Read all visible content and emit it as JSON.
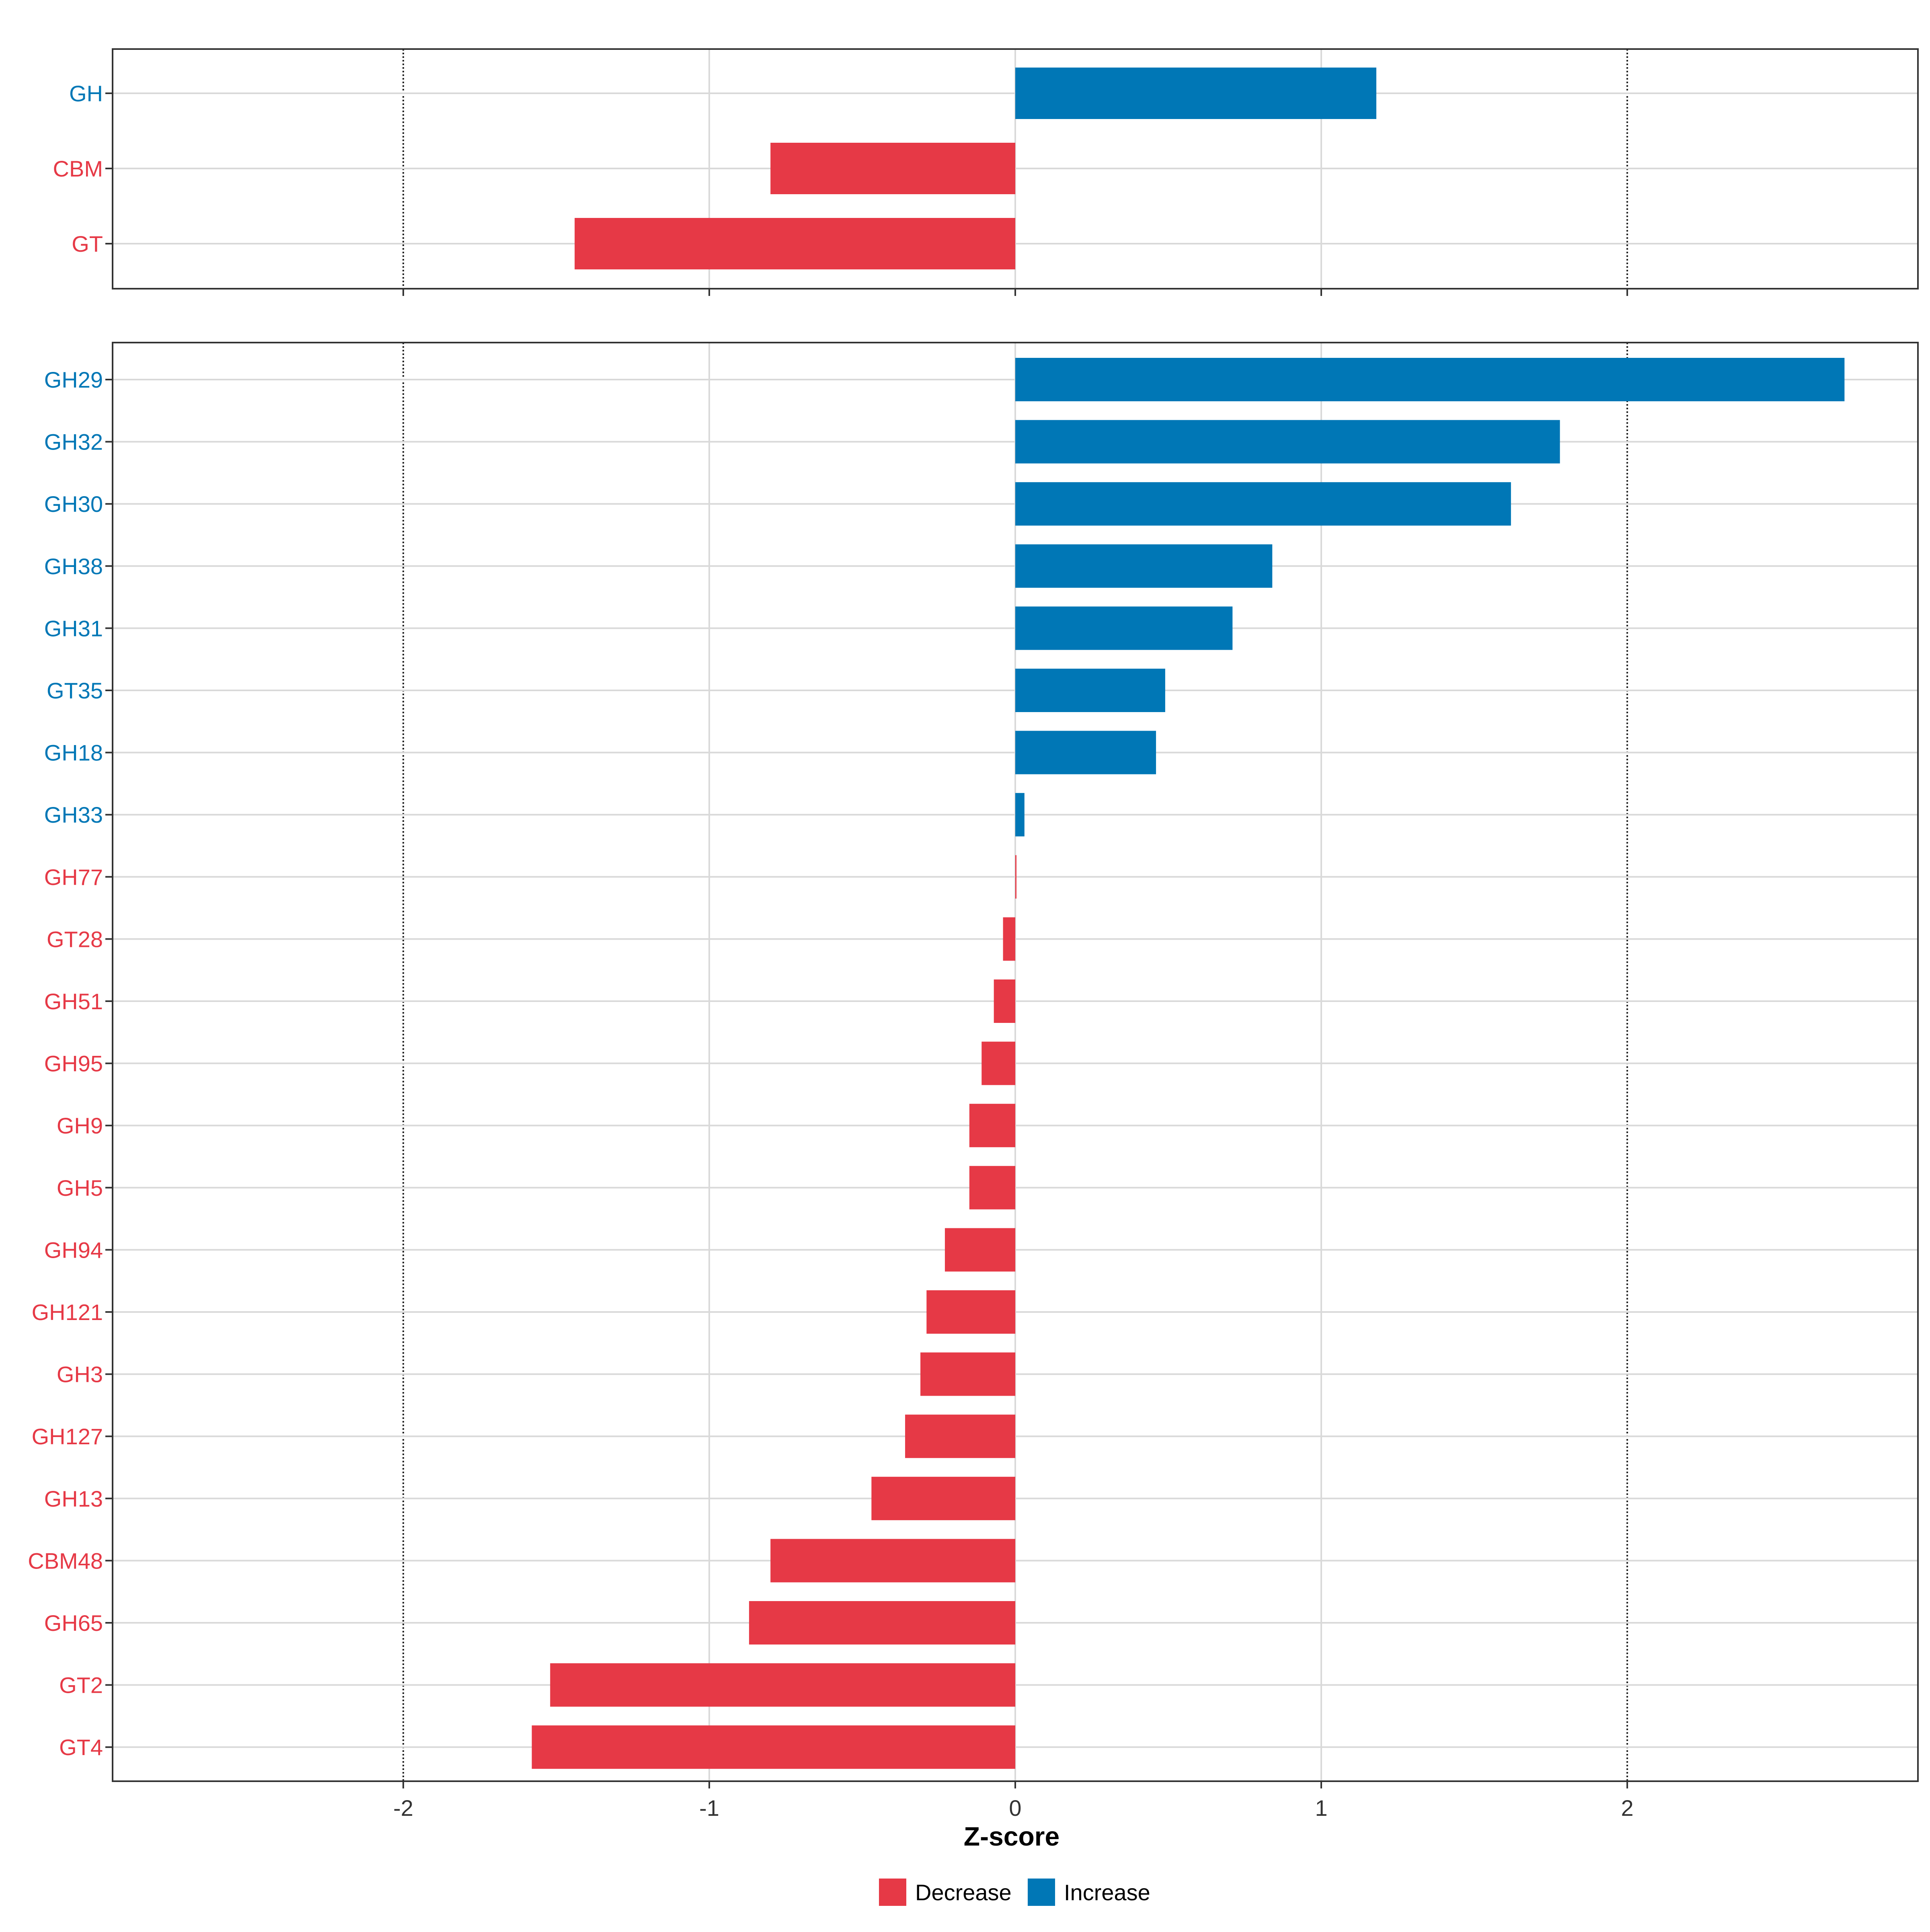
{
  "chart_data": [
    {
      "type": "bar",
      "orientation": "horizontal",
      "panel": "top",
      "categories": [
        "GH",
        "CBM",
        "GT"
      ],
      "values": [
        1.18,
        -0.8,
        -1.44
      ],
      "xlim": [
        -2.95,
        2.95
      ]
    },
    {
      "type": "bar",
      "orientation": "horizontal",
      "panel": "bottom",
      "categories": [
        "GH29",
        "GH32",
        "GH30",
        "GH38",
        "GH31",
        "GT35",
        "GH18",
        "GH33",
        "GH77",
        "GT28",
        "GH51",
        "GH95",
        "GH9",
        "GH5",
        "GH94",
        "GH121",
        "GH3",
        "GH127",
        "GH13",
        "CBM48",
        "GH65",
        "GT2",
        "GT4"
      ],
      "values": [
        2.71,
        1.78,
        1.62,
        0.84,
        0.71,
        0.49,
        0.46,
        0.03,
        0.0,
        -0.04,
        -0.07,
        -0.11,
        -0.15,
        -0.15,
        -0.23,
        -0.29,
        -0.31,
        -0.36,
        -0.47,
        -0.8,
        -0.87,
        -1.52,
        -1.58
      ],
      "xlim": [
        -2.95,
        2.95
      ],
      "xticks": [
        -2,
        -1,
        0,
        1,
        2
      ],
      "xtick_labels": [
        "-2",
        "-1",
        "0",
        "1",
        "2"
      ],
      "dotted_reference_lines": [
        -2,
        2
      ],
      "xlabel": "Z-score"
    }
  ],
  "legend": {
    "position": "bottom",
    "items": [
      {
        "label": "Decrease",
        "color": "#e63946"
      },
      {
        "label": "Increase",
        "color": "#0077b6"
      }
    ]
  },
  "colors": {
    "decrease": "#e63946",
    "increase": "#0077b6",
    "grid": "#d9d9d9",
    "panel_border": "#333333",
    "reference_line": "#222222"
  }
}
